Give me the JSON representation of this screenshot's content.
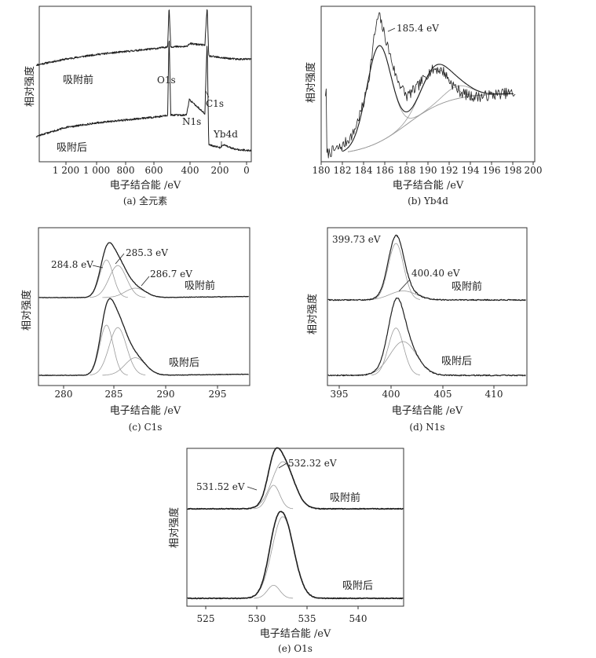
{
  "axis_common": {
    "xlabel": "电子结合能 /eV",
    "ylabel": "相对强度"
  },
  "panels": {
    "a": {
      "caption": "(a) 全元素",
      "ticks": [
        "1 200",
        "1 000",
        "800",
        "600",
        "400",
        "200",
        "0"
      ],
      "labels": {
        "before": "吸附前",
        "after": "吸附后",
        "o1s": "O1s",
        "c1s": "C1s",
        "n1s": "N1s",
        "yb4d": "Yb4d"
      }
    },
    "b": {
      "caption": "(b) Yb4d",
      "ticks": [
        "180",
        "182",
        "184",
        "186",
        "188",
        "190",
        "192",
        "194",
        "196",
        "198",
        "200"
      ],
      "labels": {
        "peak": "185.4 eV"
      }
    },
    "c": {
      "caption": "(c) C1s",
      "ticks": [
        "280",
        "285",
        "290",
        "295"
      ],
      "labels": {
        "p1": "284.8 eV",
        "p2": "285.3 eV",
        "p3": "286.7 eV",
        "before": "吸附前",
        "after": "吸附后"
      }
    },
    "d": {
      "caption": "(d) N1s",
      "ticks": [
        "395",
        "400",
        "405",
        "410"
      ],
      "labels": {
        "p1": "399.73 eV",
        "p2": "400.40 eV",
        "before": "吸附前",
        "after": "吸附后"
      }
    },
    "e": {
      "caption": "(e) O1s",
      "ticks": [
        "525",
        "530",
        "535",
        "540"
      ],
      "labels": {
        "p1": "532.32 eV",
        "p2": "531.52 eV",
        "before": "吸附前",
        "after": "吸附后"
      }
    }
  },
  "chart_data": [
    {
      "panel": "a",
      "type": "line",
      "title": "全元素",
      "xlabel": "电子结合能 /eV",
      "ylabel": "相对强度",
      "xlim": [
        1400,
        0
      ],
      "x_reversed": true,
      "series": [
        {
          "name": "吸附前",
          "x": [
            1400,
            1200,
            1000,
            800,
            600,
            540,
            531,
            520,
            420,
            400,
            300,
            285,
            275,
            200,
            100,
            0
          ],
          "y": [
            0.62,
            0.66,
            0.69,
            0.71,
            0.73,
            0.74,
            1.0,
            0.74,
            0.74,
            0.76,
            0.75,
            1.0,
            0.68,
            0.67,
            0.66,
            0.66
          ]
        },
        {
          "name": "吸附后",
          "x": [
            1400,
            1200,
            1000,
            800,
            600,
            540,
            531,
            520,
            420,
            400,
            300,
            285,
            275,
            200,
            185,
            100,
            0
          ],
          "y": [
            0.16,
            0.22,
            0.25,
            0.27,
            0.29,
            0.3,
            0.82,
            0.3,
            0.3,
            0.4,
            0.31,
            0.78,
            0.11,
            0.09,
            0.11,
            0.08,
            0.07
          ]
        }
      ],
      "annotations": [
        "O1s",
        "C1s",
        "N1s",
        "Yb4d"
      ]
    },
    {
      "panel": "b",
      "type": "line",
      "title": "Yb4d",
      "xlabel": "电子结合能 /eV",
      "ylabel": "相对强度",
      "xlim": [
        180,
        200
      ],
      "series": [
        {
          "name": "",
          "x": [
            180.5,
            182,
            183,
            184,
            184.5,
            185,
            185.4,
            186,
            187,
            188,
            189,
            190,
            190.7,
            191.5,
            192,
            193,
            194,
            195,
            196,
            197,
            198
          ],
          "y": [
            0.05,
            0.1,
            0.18,
            0.38,
            0.55,
            0.82,
            0.95,
            0.8,
            0.55,
            0.42,
            0.48,
            0.57,
            0.6,
            0.58,
            0.52,
            0.45,
            0.42,
            0.42,
            0.43,
            0.44,
            0.44
          ]
        }
      ],
      "peaks": [
        {
          "label": "185.4 eV",
          "center": 185.4
        }
      ]
    },
    {
      "panel": "c",
      "type": "line",
      "title": "C1s",
      "xlabel": "电子结合能 /eV",
      "ylabel": "相对强度",
      "xlim": [
        278,
        298
      ],
      "series": [
        {
          "name": "吸附前"
        },
        {
          "name": "吸附后"
        }
      ],
      "peaks": [
        {
          "label": "284.8 eV",
          "center": 284.8
        },
        {
          "label": "285.3 eV",
          "center": 285.3
        },
        {
          "label": "286.7 eV",
          "center": 286.7
        }
      ]
    },
    {
      "panel": "d",
      "type": "line",
      "title": "N1s",
      "xlabel": "电子结合能 /eV",
      "ylabel": "相对强度",
      "xlim": [
        393,
        413
      ],
      "series": [
        {
          "name": "吸附前"
        },
        {
          "name": "吸附后"
        }
      ],
      "peaks": [
        {
          "label": "399.73 eV",
          "center": 399.73
        },
        {
          "label": "400.40 eV",
          "center": 400.4
        }
      ]
    },
    {
      "panel": "e",
      "type": "line",
      "title": "O1s",
      "xlabel": "电子结合能 /eV",
      "ylabel": "相对强度",
      "xlim": [
        523,
        544
      ],
      "series": [
        {
          "name": "吸附前"
        },
        {
          "name": "吸附后"
        }
      ],
      "peaks": [
        {
          "label": "532.32 eV",
          "center": 532.32
        },
        {
          "label": "531.52 eV",
          "center": 531.52
        }
      ]
    }
  ]
}
